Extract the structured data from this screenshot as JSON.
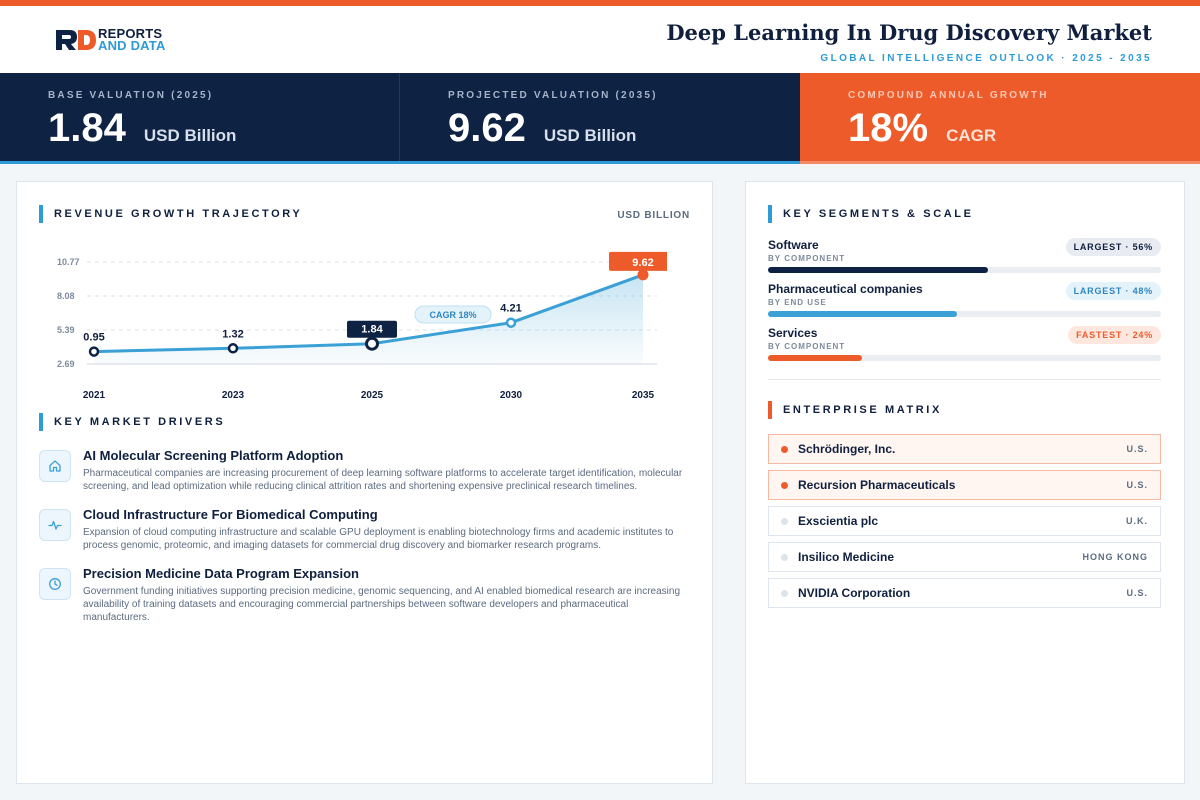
{
  "header": {
    "logo_line1": "REPORTS",
    "logo_line2": "AND DATA",
    "title": "Deep Learning In Drug Discovery Market",
    "subtitle": "GLOBAL INTELLIGENCE OUTLOOK  ·  2025 - 2035"
  },
  "kpis": [
    {
      "label": "BASE VALUATION (2025)",
      "value": "1.84",
      "unit": "USD Billion"
    },
    {
      "label": "PROJECTED VALUATION (2035)",
      "value": "9.62",
      "unit": "USD Billion"
    },
    {
      "label": "COMPOUND ANNUAL GROWTH",
      "value": "18%",
      "unit": "CAGR"
    }
  ],
  "revenue": {
    "section_title": "REVENUE GROWTH TRAJECTORY",
    "unit": "USD BILLION",
    "cagr_label": "CAGR 18%"
  },
  "chart_data": {
    "type": "line",
    "categories": [
      "2021",
      "2023",
      "2025",
      "2030",
      "2035"
    ],
    "values": [
      0.95,
      1.32,
      1.84,
      4.21,
      9.62
    ],
    "value_labels": [
      "0.95",
      "1.32",
      "1.84",
      "4.21",
      "9.62"
    ],
    "y_ticks": [
      "10.77",
      "8.08",
      "5.39",
      "2.69"
    ],
    "ylim": [
      0,
      10.77
    ],
    "title": "",
    "xlabel": "",
    "ylabel": "",
    "grid": true,
    "annotation": "CAGR 18%",
    "colors": {
      "line": "#3aa0d6",
      "highlight_navy": "#0e2244",
      "highlight_orange": "#ee5b2b"
    }
  },
  "drivers": {
    "section_title": "KEY MARKET DRIVERS",
    "items": [
      {
        "icon": "home-icon",
        "title": "AI Molecular Screening Platform Adoption",
        "desc": "Pharmaceutical companies are increasing procurement of deep learning software platforms to accelerate target identification, molecular screening, and lead optimization while reducing clinical attrition rates and shortening expensive preclinical research timelines."
      },
      {
        "icon": "pulse-icon",
        "title": "Cloud Infrastructure For Biomedical Computing",
        "desc": "Expansion of cloud computing infrastructure and scalable GPU deployment is enabling biotechnology firms and academic institutes to process genomic, proteomic, and imaging datasets for commercial drug discovery and biomarker research programs."
      },
      {
        "icon": "clock-icon",
        "title": "Precision Medicine Data Program Expansion",
        "desc": "Government funding initiatives supporting precision medicine, genomic sequencing, and AI enabled biomedical research are increasing availability of training datasets and encouraging commercial partnerships between software developers and pharmaceutical manufacturers."
      }
    ]
  },
  "segments": {
    "section_title": "KEY SEGMENTS & SCALE",
    "items": [
      {
        "name": "Software",
        "category": "BY COMPONENT",
        "badge": "LARGEST · 56%",
        "share": 0.56,
        "color": "#0e2244"
      },
      {
        "name": "Pharmaceutical companies",
        "category": "BY END USE",
        "badge": "LARGEST · 48%",
        "share": 0.48,
        "color": "#3aa0d6"
      },
      {
        "name": "Services",
        "category": "BY COMPONENT",
        "badge": "FASTEST · 24%",
        "share": 0.24,
        "color": "#ee5b2b"
      }
    ]
  },
  "matrix": {
    "section_title": "ENTERPRISE MATRIX",
    "items": [
      {
        "name": "Schrödinger, Inc.",
        "country": "U.S."
      },
      {
        "name": "Recursion Pharmaceuticals",
        "country": "U.S."
      },
      {
        "name": "Exscientia plc",
        "country": "U.K."
      },
      {
        "name": "Insilico Medicine",
        "country": "HONG KONG"
      },
      {
        "name": "NVIDIA Corporation",
        "country": "U.S."
      }
    ]
  }
}
